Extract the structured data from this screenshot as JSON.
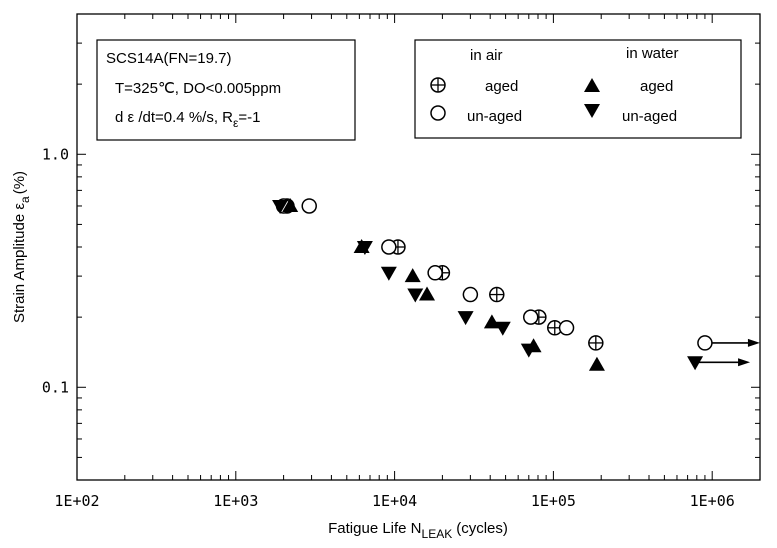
{
  "chart_data": {
    "type": "scatter",
    "x_scale": "log",
    "y_scale": "log",
    "xlim": [
      100,
      2000000
    ],
    "ylim": [
      0.04,
      4
    ],
    "xlabel": "Fatigue Life  N",
    "xlabel_sub": "LEAK",
    "xlabel_suffix": "(cycles)",
    "ylabel": "Strain Amplitude  ε",
    "ylabel_sub": "a",
    "ylabel_suffix": "(%)",
    "x_ticks": [
      {
        "value": 100,
        "label": "1E+02"
      },
      {
        "value": 1000,
        "label": "1E+03"
      },
      {
        "value": 10000,
        "label": "1E+04"
      },
      {
        "value": 100000,
        "label": "1E+05"
      },
      {
        "value": 1000000,
        "label": "1E+06"
      }
    ],
    "y_ticks": [
      {
        "value": 1.0,
        "label": "1.0"
      },
      {
        "value": 0.1,
        "label": "0.1"
      }
    ],
    "conditions": {
      "line1": "SCS14A(FN=19.7)",
      "line2": "T=325℃, DO<0.005ppm",
      "line3a": "d ε /dt=0.4 %/s,   R",
      "line3b": "ε",
      "line3c": "=-1"
    },
    "legend": {
      "placement": "top-right",
      "group_air": "in air",
      "group_water": "in water",
      "air_aged": "aged",
      "air_unaged": "un-aged",
      "water_aged": "aged",
      "water_unaged": "un-aged"
    },
    "series": [
      {
        "name": "in air aged",
        "marker": "circle-plus",
        "points": [
          [
            2100,
            0.6
          ],
          [
            10500,
            0.4
          ],
          [
            20000,
            0.31
          ],
          [
            44000,
            0.25
          ],
          [
            81000,
            0.2
          ],
          [
            102000,
            0.18
          ],
          [
            185000,
            0.155
          ]
        ]
      },
      {
        "name": "in air un-aged",
        "marker": "circle-open",
        "points": [
          [
            2000,
            0.6
          ],
          [
            2900,
            0.6
          ],
          [
            9200,
            0.4
          ],
          [
            18000,
            0.31
          ],
          [
            30000,
            0.25
          ],
          [
            72000,
            0.2
          ],
          [
            121000,
            0.18
          ],
          [
            900000,
            0.155
          ]
        ],
        "runout": [
          false,
          false,
          false,
          false,
          false,
          false,
          false,
          true
        ]
      },
      {
        "name": "in water aged",
        "marker": "triangle-up",
        "points": [
          [
            2200,
            0.6
          ],
          [
            6200,
            0.4
          ],
          [
            13000,
            0.3
          ],
          [
            16000,
            0.25
          ],
          [
            41000,
            0.19
          ],
          [
            75000,
            0.15
          ],
          [
            188000,
            0.125
          ]
        ]
      },
      {
        "name": "in water un-aged",
        "marker": "triangle-down",
        "points": [
          [
            1900,
            0.6
          ],
          [
            6500,
            0.4
          ],
          [
            9200,
            0.31
          ],
          [
            13500,
            0.25
          ],
          [
            28000,
            0.2
          ],
          [
            48000,
            0.18
          ],
          [
            70000,
            0.145
          ],
          [
            780000,
            0.128
          ]
        ],
        "runout": [
          false,
          false,
          false,
          false,
          false,
          false,
          false,
          true
        ]
      }
    ]
  }
}
